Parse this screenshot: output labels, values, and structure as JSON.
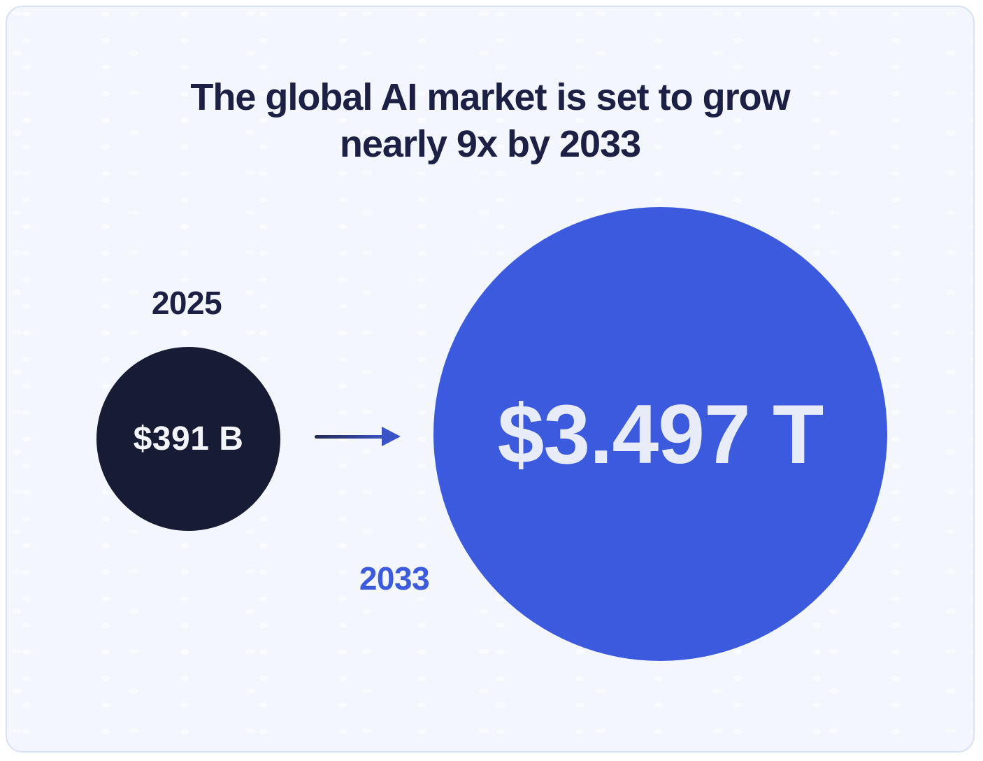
{
  "card": {
    "background": "#f3f6fc",
    "border_color": "#d9e3f7",
    "title": {
      "line1": "The global AI market is set to grow",
      "line2": "nearly 9x by 2033",
      "color": "#1b2044"
    }
  },
  "bubbles": {
    "year_2025": {
      "year_label": "2025",
      "year_label_color": "#1b2044",
      "value": "$391 B",
      "fill": "#171b34",
      "value_color": "#f3f5fb"
    },
    "year_2033": {
      "year_label": "2033",
      "year_label_color": "#3c5ade",
      "value": "$3.497 T",
      "fill": "#3c5ade",
      "value_color": "#e8ecf9"
    }
  },
  "arrow": {
    "direction": "right",
    "line_color_start": "#242a52",
    "line_color_end": "#3a53c6"
  },
  "chart_data": {
    "type": "bubble",
    "title": "The global AI market is set to grow nearly 9x by 2033",
    "categories": [
      "2025",
      "2033"
    ],
    "values": [
      391,
      3497
    ],
    "unit": "USD billions",
    "value_labels": [
      "$391 B",
      "$3.497 T"
    ],
    "growth_multiple": "nearly 9x",
    "colors": [
      "#171b34",
      "#3c5ade"
    ],
    "legend_position": "none",
    "layout": "area-proportional circles side by side, arrow from 2025 circle to 2033 circle"
  }
}
